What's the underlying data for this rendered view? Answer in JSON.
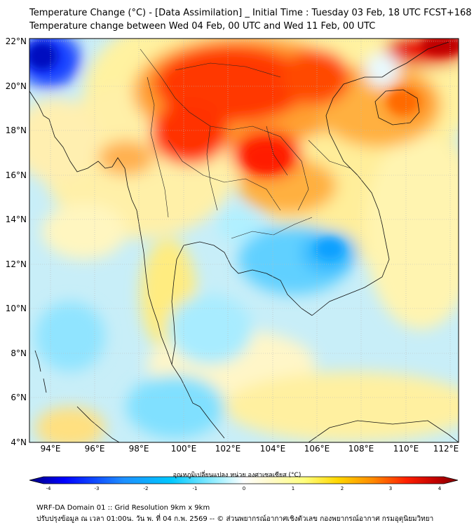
{
  "title_line1": "Temperature Change (°C) - [Data Assimilation] _ Initial Time : Tuesday 03 Feb, 18 UTC FCST+168",
  "title_line2": "Temperature change between Wed 04 Feb, 00 UTC and Wed 11 Feb, 00 UTC",
  "lat_labels": [
    "22°N",
    "20°N",
    "18°N",
    "16°N",
    "14°N",
    "12°N",
    "10°N",
    "8°N",
    "6°N",
    "4°N"
  ],
  "lon_labels": [
    "94°E",
    "96°E",
    "98°E",
    "100°E",
    "102°E",
    "104°E",
    "106°E",
    "108°E",
    "110°E",
    "112°E"
  ],
  "colorbar": {
    "title": "อุณหภูมิเปลี่ยนแปลง หน่วย องศาเซลเซียส (°C)",
    "tick_labels": [
      "-4",
      "-3",
      "-2",
      "-1",
      "0",
      "1",
      "2",
      "3",
      "4"
    ],
    "colors": [
      "#00007f",
      "#0000ff",
      "#1e90ff",
      "#00c8ff",
      "#a0f0ff",
      "#ffffff",
      "#fffacd",
      "#ffff80",
      "#ffd700",
      "#ff8c00",
      "#ff2000",
      "#c00000",
      "#800000"
    ]
  },
  "footer_line1": "WRF-DA Domain 01 :: Grid Resolution 9km x 9km",
  "footer_line2": "ปรับปรุงข้อมูล ณ เวลา 01:00น. วัน พ. ที่ 04 ก.พ. 2569 -- © ส่วนพยากรณ์อากาศเชิงตัวเลข กองพยากรณ์อากาศ กรมอุตุนิยมวิทยา"
}
